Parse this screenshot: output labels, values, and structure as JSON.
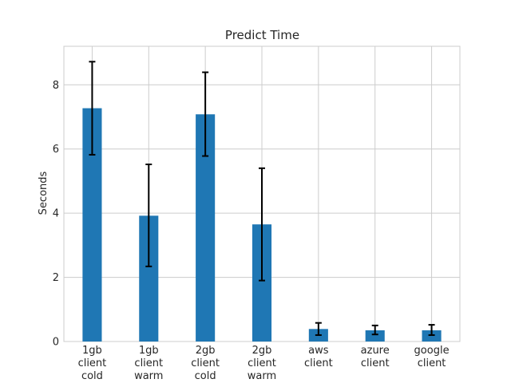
{
  "chart_data": {
    "type": "bar",
    "title": "Predict Time",
    "xlabel": "",
    "ylabel": "Seconds",
    "categories": [
      [
        "1gb",
        "client",
        "cold"
      ],
      [
        "1gb",
        "client",
        "warm"
      ],
      [
        "2gb",
        "client",
        "cold"
      ],
      [
        "2gb",
        "client",
        "warm"
      ],
      [
        "aws",
        "client"
      ],
      [
        "azure",
        "client"
      ],
      [
        "google",
        "client"
      ]
    ],
    "values": [
      7.27,
      3.92,
      7.08,
      3.65,
      0.39,
      0.35,
      0.35
    ],
    "error_bars": [
      [
        5.82,
        8.72
      ],
      [
        2.34,
        5.52
      ],
      [
        5.78,
        8.39
      ],
      [
        1.9,
        5.4
      ],
      [
        0.2,
        0.58
      ],
      [
        0.22,
        0.5
      ],
      [
        0.2,
        0.52
      ]
    ],
    "ylim": [
      0,
      9.2
    ],
    "yticks": [
      0,
      2,
      4,
      6,
      8
    ],
    "grid": true,
    "bar_color": "#1f77b4",
    "grid_color": "#cccccc"
  }
}
